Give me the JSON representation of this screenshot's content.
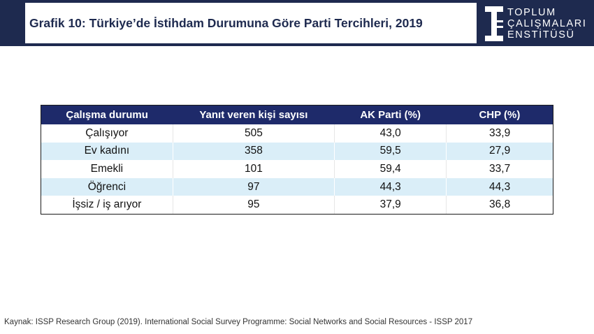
{
  "header": {
    "title": "Grafik 10: Türkiye’de İstihdam Durumuna Göre Parti Tercihleri, 2019",
    "logo_lines": [
      "TOPLUM",
      "ÇALIŞMALARI",
      "ENSTİTÜSÜ"
    ]
  },
  "colors": {
    "header_bg": "#1e2a4f",
    "table_header_bg": "#1e2a6a",
    "row_alt_bg": "#daeef8"
  },
  "chart_data": {
    "type": "table",
    "columns": [
      "Çalışma durumu",
      "Yanıt veren kişi sayısı",
      "AK Parti (%)",
      "CHP (%)"
    ],
    "rows": [
      [
        "Çalışıyor",
        "505",
        "43,0",
        "33,9"
      ],
      [
        "Ev kadını",
        "358",
        "59,5",
        "27,9"
      ],
      [
        "Emekli",
        "101",
        "59,4",
        "33,7"
      ],
      [
        "Öğrenci",
        "97",
        "44,3",
        "44,3"
      ],
      [
        "İşsiz / iş arıyor",
        "95",
        "37,9",
        "36,8"
      ]
    ]
  },
  "footer": {
    "source": "Kaynak: ISSP Research Group (2019). International Social Survey Programme: Social Networks and Social Resources - ISSP 2017"
  }
}
